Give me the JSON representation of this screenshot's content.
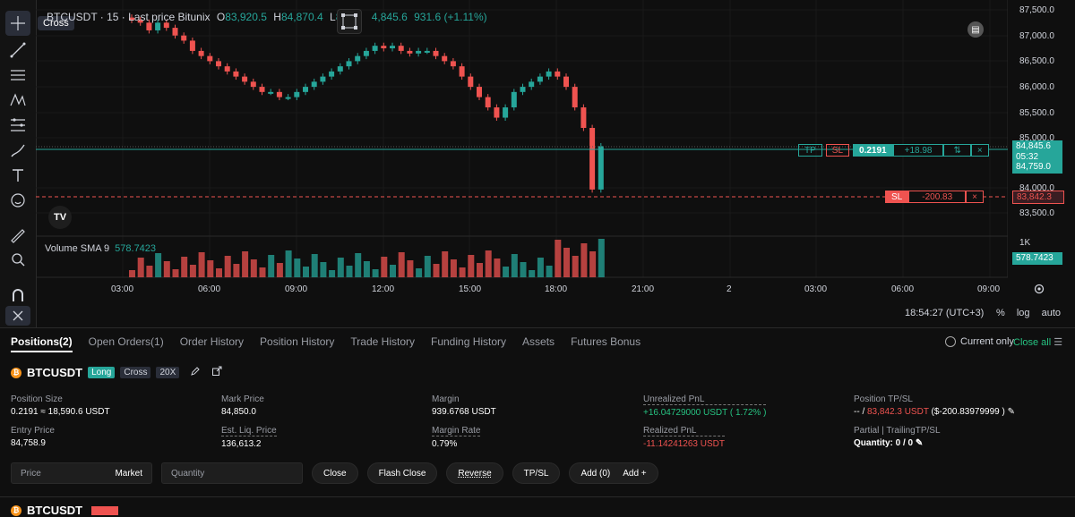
{
  "chart": {
    "symbol_line": "BTCUSDT · 15 · Last price Bitunix",
    "o_label": "O",
    "o_value": "83,920.5",
    "h_label": "H",
    "h_value": "84,870.4",
    "l_label": "L",
    "l_value": "8",
    "c_value": "4,845.6",
    "change": "931.6 (+1.11%)",
    "tooltip": "Cross",
    "tv_logo": "TV",
    "volume_label": "Volume SMA 9",
    "volume_value": "578.7423",
    "price_ticks": [
      "87,500.0",
      "87,000.0",
      "86,500.0",
      "86,000.0",
      "85,500.0",
      "85,000.0",
      "84,000.0",
      "83,500.0"
    ],
    "volume_tick": "1K",
    "volume_tag": "578.7423",
    "last_price_tag": "84,845.6",
    "countdown_tag": "05:32",
    "entry_tag": "84,759.0",
    "sl_tag": "83,842.3",
    "time_ticks": [
      "03:00",
      "06:00",
      "09:00",
      "12:00",
      "15:00",
      "18:00",
      "21:00",
      "2",
      "03:00",
      "06:00",
      "09:00"
    ],
    "timezone": "18:54:27 (UTC+3)",
    "scale_pct": "%",
    "scale_log": "log",
    "scale_auto": "auto",
    "order_line": {
      "tp": "TP",
      "sl": "SL",
      "qty": "0.2191",
      "pnl": "+18.98",
      "close": "×",
      "split": "⇅"
    },
    "sl_line": {
      "label": "SL",
      "pnl": "-200.83",
      "close": "×"
    },
    "colors": {
      "up": "#26a69a",
      "down": "#ef5350",
      "bg": "#0f0f0f"
    }
  },
  "tabs": [
    {
      "label": "Positions(2)",
      "active": true
    },
    {
      "label": "Open Orders(1)"
    },
    {
      "label": "Order History"
    },
    {
      "label": "Position History"
    },
    {
      "label": "Trade History"
    },
    {
      "label": "Funding History"
    },
    {
      "label": "Assets"
    },
    {
      "label": "Futures Bonus"
    }
  ],
  "current_only": "Current only",
  "close_all": "Close all",
  "position": {
    "coin_glyph": "₿",
    "symbol": "BTCUSDT",
    "side": "Long",
    "margin_mode": "Cross",
    "leverage": "20X",
    "position_size_label": "Position Size",
    "position_size": "0.2191 ≈ 18,590.6 USDT",
    "mark_price_label": "Mark Price",
    "mark_price": "84,850.0",
    "margin_label": "Margin",
    "margin": "939.6768 USDT",
    "unrealized_label": "Unrealized PnL",
    "unrealized": "+16.04729000 USDT ( 1.72% )",
    "tpsl_label": "Position TP/SL",
    "tpsl_tp": "-- /",
    "tpsl_sl": "83,842.3 USDT",
    "tpsl_sl_pnl": "($-200.83979999 )",
    "entry_label": "Entry Price",
    "entry": "84,758.9",
    "liq_label": "Est. Liq. Price",
    "liq": "136,613.2",
    "margin_rate_label": "Margin Rate",
    "margin_rate": "0.79%",
    "realized_label": "Realized PnL",
    "realized": "-11.14241263 USDT",
    "trailing_label": "Partial | TrailingTP/SL",
    "quantity_text": "Quantity: 0 / 0"
  },
  "actions": {
    "price_placeholder": "Price",
    "market": "Market",
    "quantity_placeholder": "Quantity",
    "close": "Close",
    "flash_close": "Flash Close",
    "reverse": "Reverse",
    "tpsl": "TP/SL",
    "add_count": "Add  (0)",
    "add": "Add +"
  },
  "next_position": {
    "symbol": "BTCUSDT"
  }
}
